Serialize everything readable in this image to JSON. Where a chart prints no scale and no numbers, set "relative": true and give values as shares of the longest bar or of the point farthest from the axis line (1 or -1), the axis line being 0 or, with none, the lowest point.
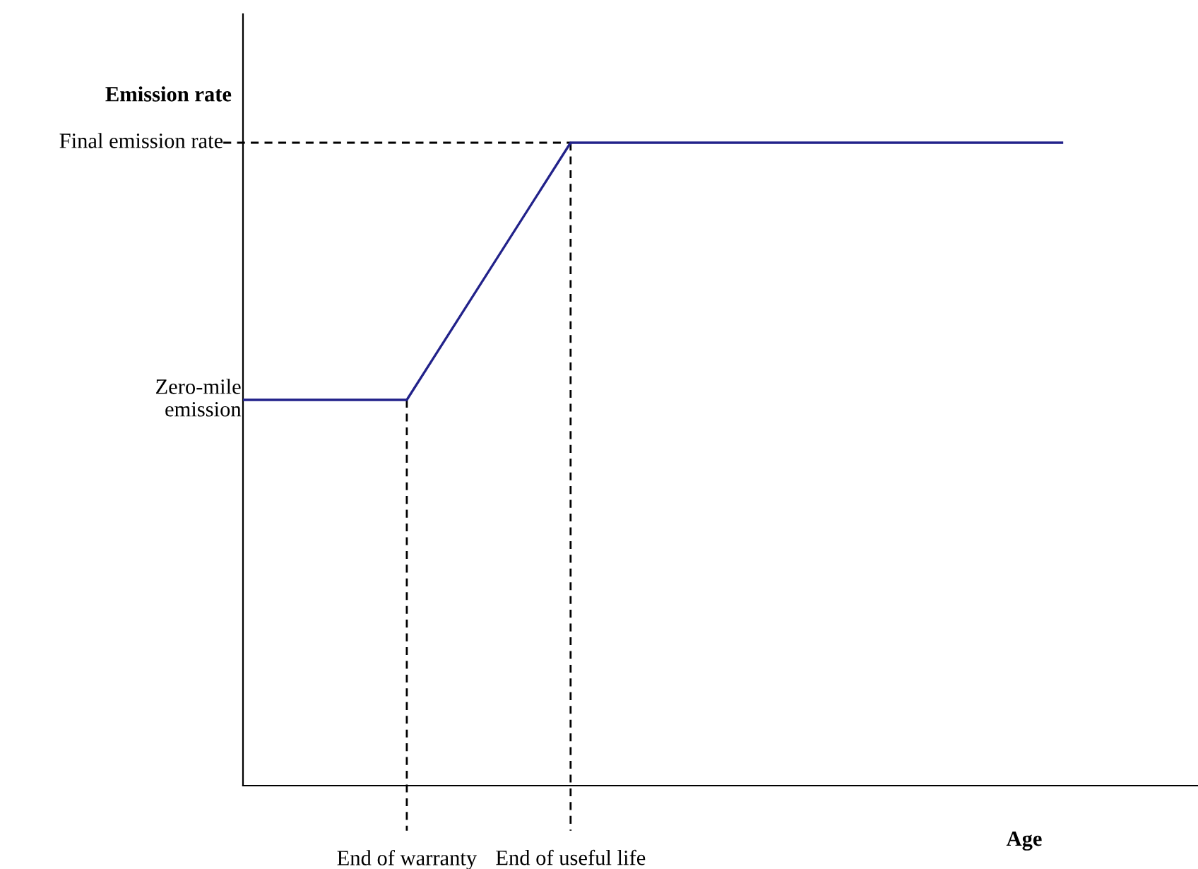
{
  "chart_data": {
    "type": "line",
    "relative": true,
    "marker": "none",
    "line_style": "solid",
    "xlabel": "Age",
    "ylabel": "Emission rate",
    "categories": [
      null,
      null,
      null,
      null,
      null,
      null
    ],
    "series": [
      {
        "color": "#22228a",
        "values": [
          0.6,
          0.6,
          1,
          1,
          1,
          1
        ]
      }
    ],
    "annotations": [
      "Final emission rate",
      "Zero-mile\nemission",
      "End of warranty",
      "End of useful life"
    ]
  }
}
